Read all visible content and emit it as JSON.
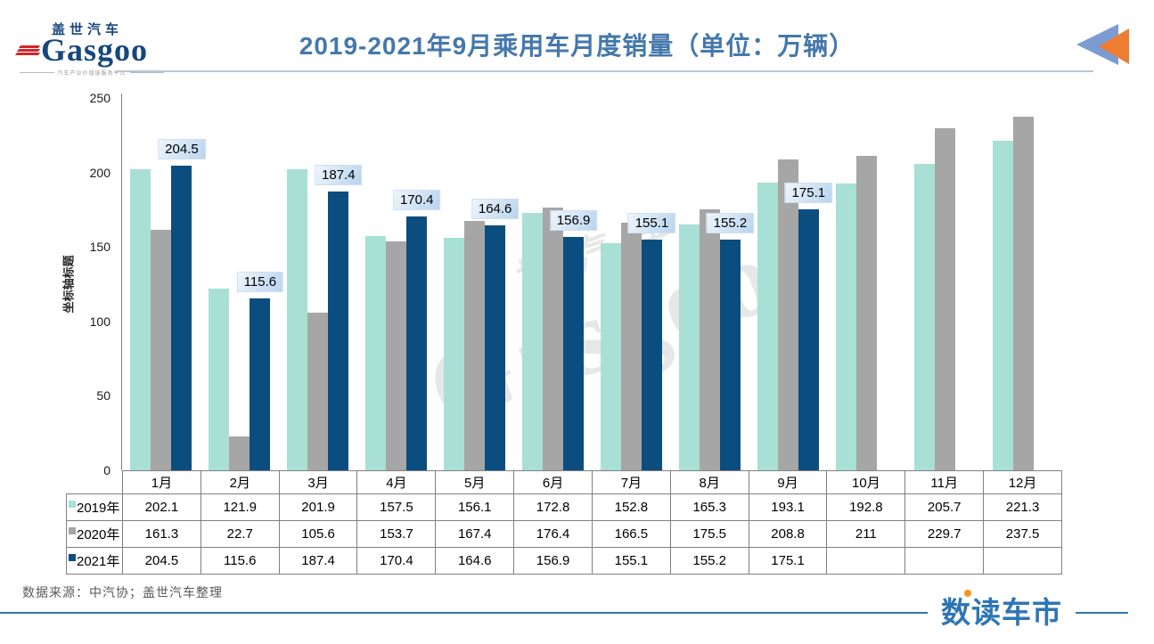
{
  "header": {
    "logo": {
      "brand_cn": "盖世汽车",
      "brand": "Gasgoo",
      "tagline": "汽车产业价值链服务平台"
    }
  },
  "chart_data": {
    "type": "bar",
    "title": "2019-2021年9月乘用车月度销量（单位：万辆）",
    "ylabel": "坐标轴标题",
    "xlabel": "",
    "ylim": [
      0,
      250
    ],
    "yticks": [
      0,
      50,
      100,
      150,
      200,
      250
    ],
    "grid": false,
    "legend_position": "data-table-left",
    "categories": [
      "1月",
      "2月",
      "3月",
      "4月",
      "5月",
      "6月",
      "7月",
      "8月",
      "9月",
      "10月",
      "11月",
      "12月"
    ],
    "series": [
      {
        "name": "2019年",
        "color": "#a8e0d5",
        "values": [
          202.1,
          121.9,
          201.9,
          157.5,
          156.1,
          172.8,
          152.8,
          165.3,
          193.1,
          192.8,
          205.7,
          221.3
        ]
      },
      {
        "name": "2020年",
        "color": "#a6a6a6",
        "values": [
          161.3,
          22.7,
          105.6,
          153.7,
          167.4,
          176.4,
          166.5,
          175.5,
          208.8,
          211,
          229.7,
          237.5
        ]
      },
      {
        "name": "2021年",
        "color": "#0c4d80",
        "data_labels": true,
        "values": [
          204.5,
          115.6,
          187.4,
          170.4,
          164.6,
          156.9,
          155.1,
          155.2,
          175.1,
          null,
          null,
          null
        ]
      }
    ]
  },
  "watermark": {
    "line1": "盖世汽车",
    "line2": "Gasgoo"
  },
  "footer": {
    "source": "数据来源：中汽协；盖世汽车整理",
    "brand": "数读车市"
  },
  "colors": {
    "title_blue": "#4478ab",
    "accent_blue": "#2e75b6",
    "arrow_blue": "#7d9bd3",
    "arrow_orange": "#ed7d31",
    "label_bg": "#bdd7ee",
    "table_border": "#808080"
  }
}
